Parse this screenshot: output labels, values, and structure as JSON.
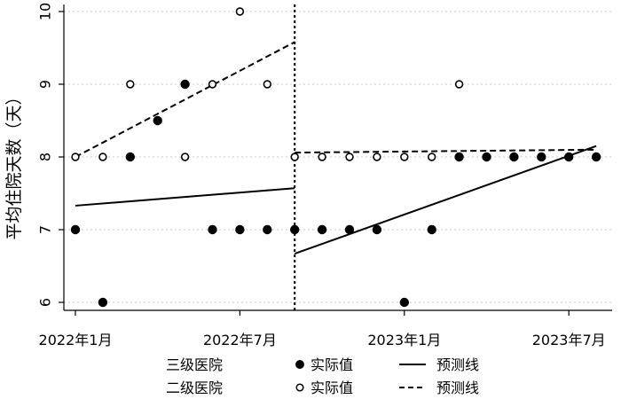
{
  "chart_data": {
    "type": "scatter",
    "ylabel": "平均住院天数（天）",
    "ylim": [
      5.9,
      10.05
    ],
    "yticks": [
      6,
      7,
      8,
      9,
      10
    ],
    "x_range": [
      0,
      19.4
    ],
    "xtick_positions": [
      0,
      6,
      12,
      18
    ],
    "xtick_labels": [
      "2022年1月",
      "2022年7月",
      "2023年1月",
      "2023年7月"
    ],
    "intervention_x": 8,
    "series": [
      {
        "name": "三级医院",
        "marker": "filled",
        "points": [
          {
            "x": 0,
            "y": 7
          },
          {
            "x": 1,
            "y": 6
          },
          {
            "x": 2,
            "y": 8
          },
          {
            "x": 3,
            "y": 8.5
          },
          {
            "x": 4,
            "y": 9
          },
          {
            "x": 5,
            "y": 7
          },
          {
            "x": 6,
            "y": 7
          },
          {
            "x": 7,
            "y": 7
          },
          {
            "x": 8,
            "y": 7
          },
          {
            "x": 9,
            "y": 7
          },
          {
            "x": 10,
            "y": 7
          },
          {
            "x": 11,
            "y": 7
          },
          {
            "x": 12,
            "y": 6
          },
          {
            "x": 13,
            "y": 7
          },
          {
            "x": 14,
            "y": 8
          },
          {
            "x": 15,
            "y": 8
          },
          {
            "x": 16,
            "y": 8
          },
          {
            "x": 17,
            "y": 8
          },
          {
            "x": 18,
            "y": 8
          },
          {
            "x": 19,
            "y": 8
          }
        ],
        "fit": [
          {
            "x0": 0,
            "y0": 7.33,
            "x1": 8,
            "y1": 7.57
          },
          {
            "x0": 8,
            "y0": 6.67,
            "x1": 19,
            "y1": 8.15
          }
        ]
      },
      {
        "name": "二级医院",
        "marker": "hollow",
        "points": [
          {
            "x": 0,
            "y": 8
          },
          {
            "x": 1,
            "y": 8
          },
          {
            "x": 2,
            "y": 9
          },
          {
            "x": 4,
            "y": 8
          },
          {
            "x": 5,
            "y": 9
          },
          {
            "x": 6,
            "y": 10
          },
          {
            "x": 7,
            "y": 9
          },
          {
            "x": 8,
            "y": 8
          },
          {
            "x": 9,
            "y": 8
          },
          {
            "x": 10,
            "y": 8
          },
          {
            "x": 11,
            "y": 8
          },
          {
            "x": 12,
            "y": 8
          },
          {
            "x": 13,
            "y": 8
          },
          {
            "x": 14,
            "y": 9
          }
        ],
        "fit": [
          {
            "x0": 0,
            "y0": 8.0,
            "x1": 8,
            "y1": 9.58
          },
          {
            "x0": 8,
            "y0": 8.06,
            "x1": 19,
            "y1": 8.1
          }
        ]
      }
    ],
    "legend": {
      "placement": "bottom",
      "rows": [
        {
          "group": "三级医院",
          "marker_label": "实际值",
          "line_label": "预测线"
        },
        {
          "group": "二级医院",
          "marker_label": "实际值",
          "line_label": "预测线"
        }
      ]
    }
  }
}
